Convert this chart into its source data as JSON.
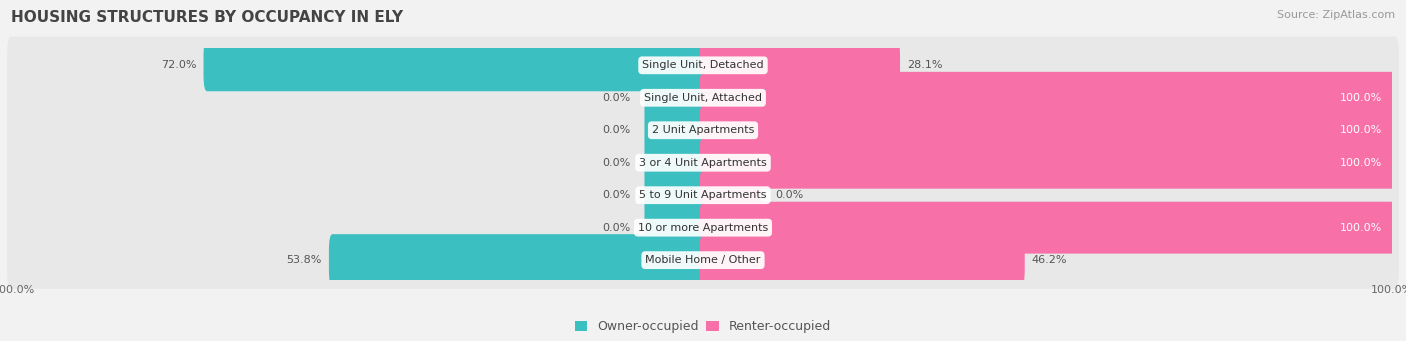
{
  "title": "HOUSING STRUCTURES BY OCCUPANCY IN ELY",
  "source": "Source: ZipAtlas.com",
  "categories": [
    "Single Unit, Detached",
    "Single Unit, Attached",
    "2 Unit Apartments",
    "3 or 4 Unit Apartments",
    "5 to 9 Unit Apartments",
    "10 or more Apartments",
    "Mobile Home / Other"
  ],
  "owner_pct": [
    72.0,
    0.0,
    0.0,
    0.0,
    0.0,
    0.0,
    53.8
  ],
  "renter_pct": [
    28.1,
    100.0,
    100.0,
    100.0,
    0.0,
    100.0,
    46.2
  ],
  "owner_color": "#3BBFC0",
  "renter_color": "#F870A8",
  "bg_color": "#F2F2F2",
  "row_bg_color": "#E8E8E8",
  "title_fontsize": 11,
  "label_fontsize": 8,
  "pct_fontsize": 8,
  "axis_tick_fontsize": 8,
  "legend_fontsize": 9,
  "source_fontsize": 8
}
